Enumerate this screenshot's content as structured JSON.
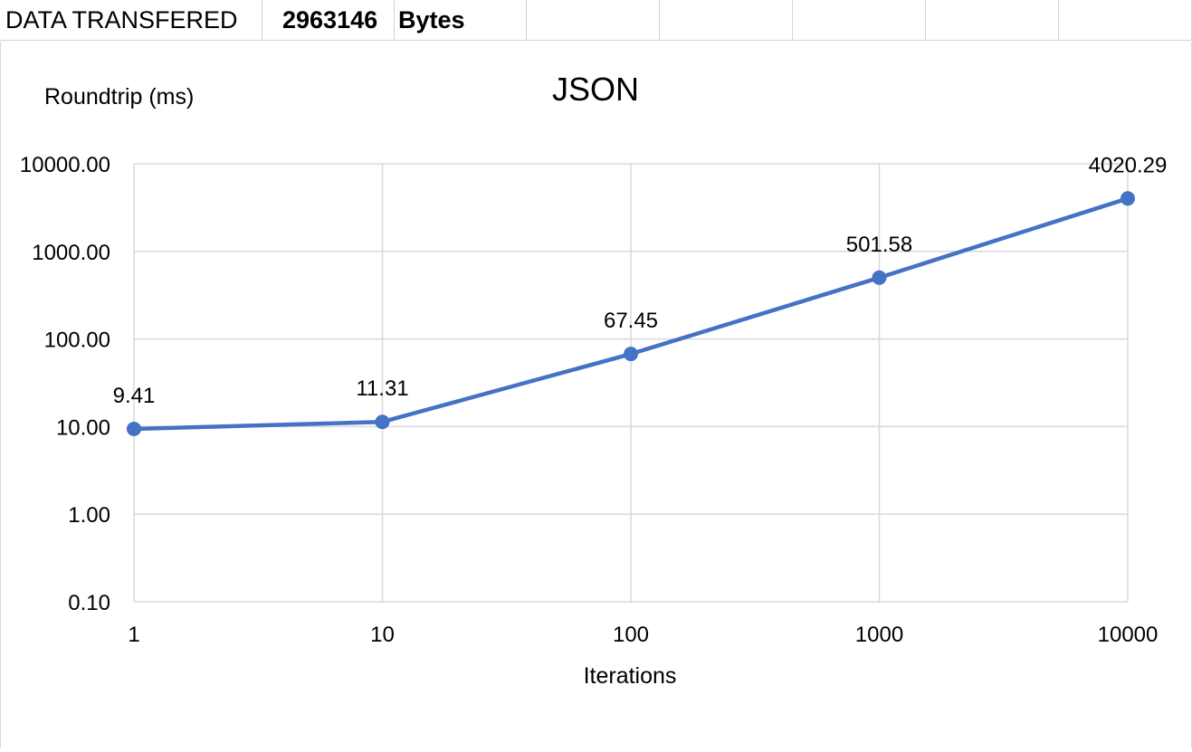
{
  "sheet": {
    "label": "DATA TRANSFERED",
    "value": "2963146",
    "unit": "Bytes"
  },
  "colors": {
    "series": "#4472C4",
    "grid": "#d9d9d9",
    "axis": "#d9d9d9"
  },
  "chart_data": {
    "type": "line",
    "title": "JSON",
    "xlabel": "Iterations",
    "ylabel": "Roundtrip (ms)",
    "x_scale": "log",
    "y_scale": "log",
    "x": [
      1,
      10,
      100,
      1000,
      10000
    ],
    "x_tick_labels": [
      "1",
      "10",
      "100",
      "1000",
      "10000"
    ],
    "y_ticks": [
      0.1,
      1,
      10,
      100,
      1000,
      10000
    ],
    "y_tick_labels": [
      "0.10",
      "1.00",
      "10.00",
      "100.00",
      "1000.00",
      "10000.00"
    ],
    "ylim": [
      0.1,
      10000
    ],
    "grid": true,
    "series": [
      {
        "values": [
          9.41,
          11.31,
          67.45,
          501.58,
          4020.29
        ],
        "data_labels": [
          "9.41",
          "11.31",
          "67.45",
          "501.58",
          "4020.29"
        ],
        "color": "#4472C4",
        "markers": true
      }
    ]
  }
}
